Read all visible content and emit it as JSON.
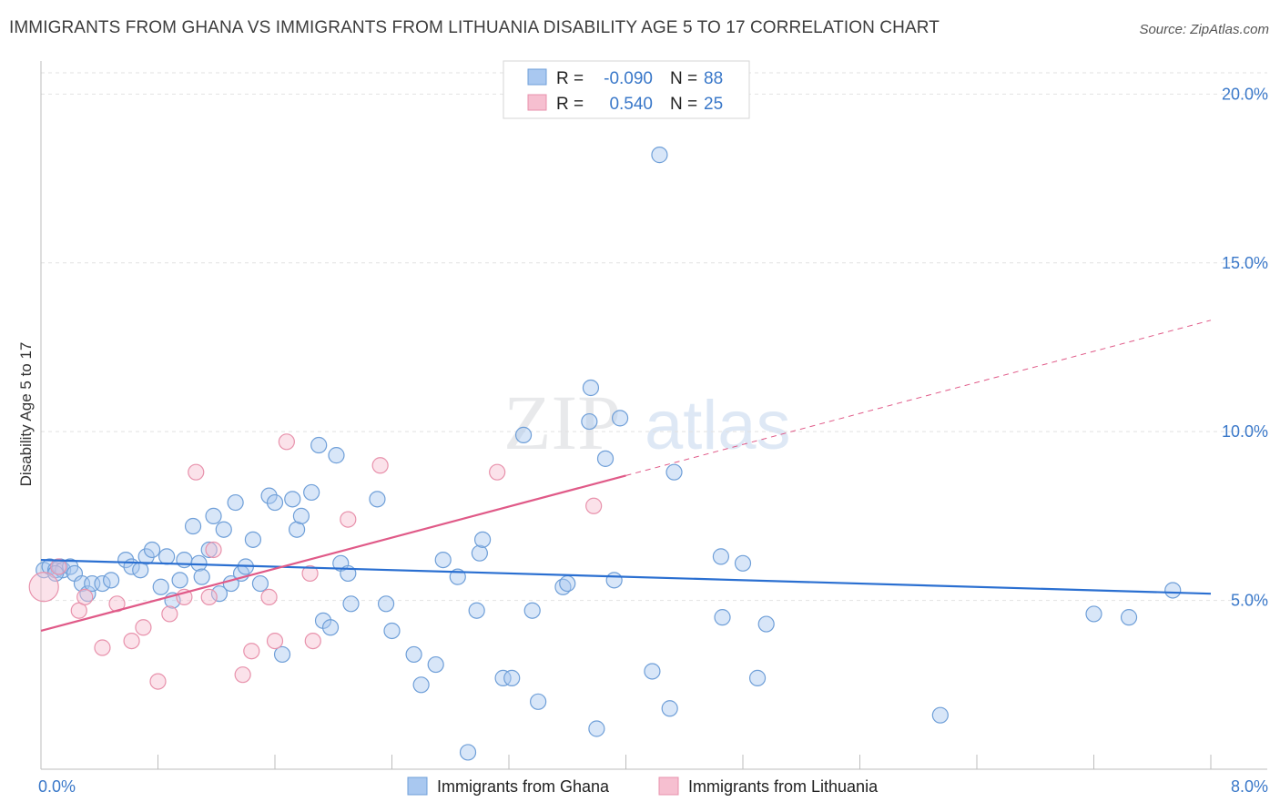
{
  "header": {
    "title": "IMMIGRANTS FROM GHANA VS IMMIGRANTS FROM LITHUANIA DISABILITY AGE 5 TO 17 CORRELATION CHART",
    "source": "Source: ZipAtlas.com"
  },
  "watermark": {
    "part1": "ZIP",
    "part2": "atlas"
  },
  "chart_data": {
    "type": "scatter",
    "title": "IMMIGRANTS FROM GHANA VS IMMIGRANTS FROM LITHUANIA DISABILITY AGE 5 TO 17 CORRELATION CHART",
    "ylabel": "Disability Age 5 to 17",
    "xlabel": "",
    "xlim": [
      0,
      8
    ],
    "ylim": [
      0,
      20.9
    ],
    "x_tick_labels": [
      "0.0%",
      "8.0%"
    ],
    "y_ticks": [
      5,
      10,
      15,
      20
    ],
    "y_tick_labels": [
      "5.0%",
      "10.0%",
      "15.0%",
      "20.0%"
    ],
    "grid": true,
    "legend": {
      "placement": "top-center",
      "r_label": "R =",
      "n_label": "N =",
      "rows": [
        {
          "r": "-0.090",
          "n": "88"
        },
        {
          "r": "0.540",
          "n": "25"
        }
      ]
    },
    "series": [
      {
        "name": "Immigrants from Ghana",
        "color": "#a9c8f0",
        "stroke": "#6f9fd8",
        "line_color": "#2a6fd1",
        "trend": {
          "x0": 0,
          "y0": 6.2,
          "x1": 8,
          "y1": 5.2
        },
        "points": [
          [
            0.02,
            5.9
          ],
          [
            0.06,
            6.0
          ],
          [
            0.1,
            5.9
          ],
          [
            0.13,
            6.0
          ],
          [
            0.15,
            5.9
          ],
          [
            0.2,
            6.0
          ],
          [
            0.23,
            5.8
          ],
          [
            0.28,
            5.5
          ],
          [
            0.32,
            5.2
          ],
          [
            0.35,
            5.5
          ],
          [
            0.42,
            5.5
          ],
          [
            0.48,
            5.6
          ],
          [
            0.58,
            6.2
          ],
          [
            0.62,
            6.0
          ],
          [
            0.68,
            5.9
          ],
          [
            0.72,
            6.3
          ],
          [
            0.76,
            6.5
          ],
          [
            0.82,
            5.4
          ],
          [
            0.86,
            6.3
          ],
          [
            0.9,
            5.0
          ],
          [
            0.95,
            5.6
          ],
          [
            0.98,
            6.2
          ],
          [
            1.04,
            7.2
          ],
          [
            1.08,
            6.1
          ],
          [
            1.1,
            5.7
          ],
          [
            1.15,
            6.5
          ],
          [
            1.18,
            7.5
          ],
          [
            1.22,
            5.2
          ],
          [
            1.25,
            7.1
          ],
          [
            1.3,
            5.5
          ],
          [
            1.33,
            7.9
          ],
          [
            1.37,
            5.8
          ],
          [
            1.4,
            6.0
          ],
          [
            1.45,
            6.8
          ],
          [
            1.5,
            5.5
          ],
          [
            1.56,
            8.1
          ],
          [
            1.6,
            7.9
          ],
          [
            1.65,
            3.4
          ],
          [
            1.72,
            8.0
          ],
          [
            1.75,
            7.1
          ],
          [
            1.78,
            7.5
          ],
          [
            1.85,
            8.2
          ],
          [
            1.9,
            9.6
          ],
          [
            1.93,
            4.4
          ],
          [
            1.98,
            4.2
          ],
          [
            2.02,
            9.3
          ],
          [
            2.05,
            6.1
          ],
          [
            2.1,
            5.8
          ],
          [
            2.12,
            4.9
          ],
          [
            2.3,
            8.0
          ],
          [
            2.36,
            4.9
          ],
          [
            2.4,
            4.1
          ],
          [
            2.55,
            3.4
          ],
          [
            2.6,
            2.5
          ],
          [
            2.7,
            3.1
          ],
          [
            2.75,
            6.2
          ],
          [
            2.85,
            5.7
          ],
          [
            2.92,
            0.5
          ],
          [
            2.98,
            4.7
          ],
          [
            3.0,
            6.4
          ],
          [
            3.02,
            6.8
          ],
          [
            3.16,
            2.7
          ],
          [
            3.22,
            2.7
          ],
          [
            3.3,
            9.9
          ],
          [
            3.36,
            4.7
          ],
          [
            3.4,
            2.0
          ],
          [
            3.57,
            5.4
          ],
          [
            3.6,
            5.5
          ],
          [
            3.75,
            10.3
          ],
          [
            3.76,
            11.3
          ],
          [
            3.8,
            1.2
          ],
          [
            3.86,
            9.2
          ],
          [
            3.92,
            5.6
          ],
          [
            3.96,
            10.4
          ],
          [
            4.23,
            18.2
          ],
          [
            4.18,
            2.9
          ],
          [
            4.3,
            1.8
          ],
          [
            4.33,
            8.8
          ],
          [
            4.65,
            6.3
          ],
          [
            4.66,
            4.5
          ],
          [
            4.8,
            6.1
          ],
          [
            4.9,
            2.7
          ],
          [
            4.96,
            4.3
          ],
          [
            6.15,
            1.6
          ],
          [
            7.2,
            4.6
          ],
          [
            7.44,
            4.5
          ],
          [
            7.74,
            5.3
          ],
          [
            0.1,
            5.8
          ]
        ]
      },
      {
        "name": "Immigrants from Lithuania",
        "color": "#f6bfd0",
        "stroke": "#e892ac",
        "line_color": "#e05a88",
        "trend": {
          "x0": 0,
          "y0": 4.1,
          "x1": 4.0,
          "y1": 8.7,
          "x_dash_end": 8.0,
          "y_dash_end": 13.3
        },
        "points": [
          [
            0.02,
            5.4
          ],
          [
            0.12,
            6.0
          ],
          [
            0.26,
            4.7
          ],
          [
            0.3,
            5.1
          ],
          [
            0.42,
            3.6
          ],
          [
            0.52,
            4.9
          ],
          [
            0.62,
            3.8
          ],
          [
            0.7,
            4.2
          ],
          [
            0.8,
            2.6
          ],
          [
            0.88,
            4.6
          ],
          [
            0.98,
            5.1
          ],
          [
            1.06,
            8.8
          ],
          [
            1.15,
            5.1
          ],
          [
            1.18,
            6.5
          ],
          [
            1.38,
            2.8
          ],
          [
            1.44,
            3.5
          ],
          [
            1.56,
            5.1
          ],
          [
            1.6,
            3.8
          ],
          [
            1.68,
            9.7
          ],
          [
            1.84,
            5.8
          ],
          [
            1.86,
            3.8
          ],
          [
            2.1,
            7.4
          ],
          [
            2.32,
            9.0
          ],
          [
            3.12,
            8.8
          ],
          [
            3.78,
            7.8
          ]
        ]
      }
    ]
  },
  "bottom_legend": {
    "items": [
      "Immigrants from Ghana",
      "Immigrants from Lithuania"
    ]
  }
}
